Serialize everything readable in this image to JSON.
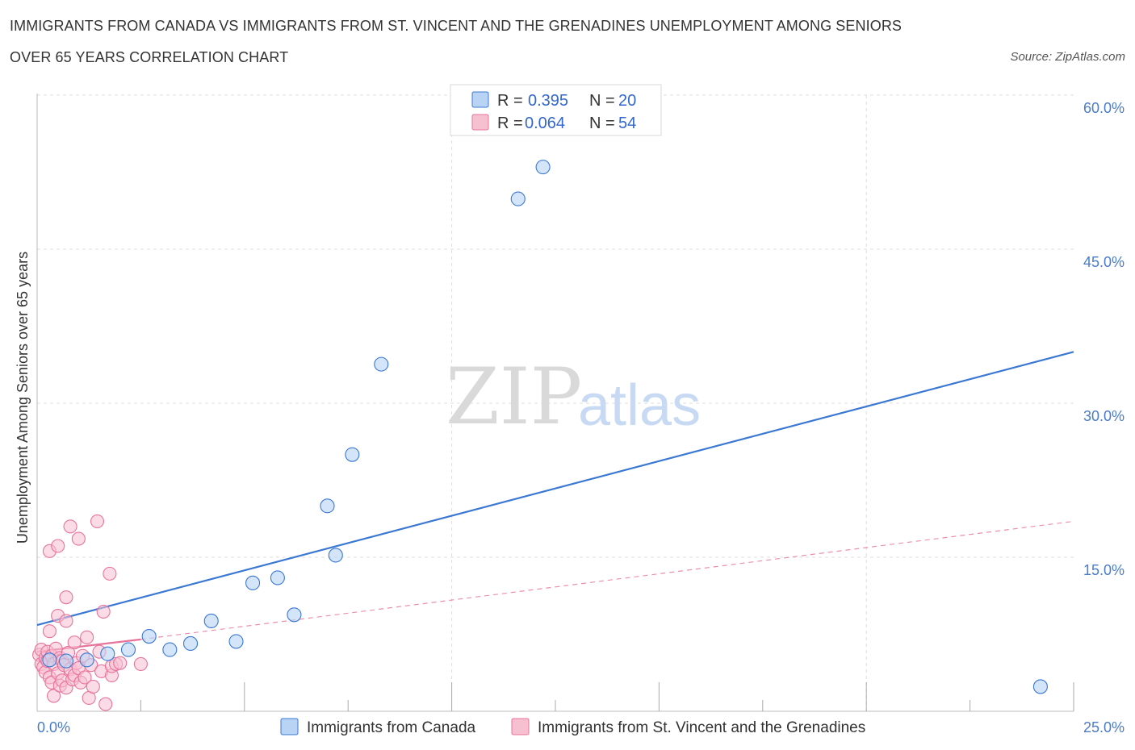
{
  "title_line1": "IMMIGRANTS FROM CANADA VS IMMIGRANTS FROM ST. VINCENT AND THE GRENADINES UNEMPLOYMENT AMONG SENIORS",
  "title_line2": "OVER 65 YEARS CORRELATION CHART",
  "source": "Source: ZipAtlas.com",
  "watermark": {
    "zip": "ZIP",
    "atlas": "atlas"
  },
  "colors": {
    "canada": "#3a78d4",
    "canada_fill": "#b9d3f5",
    "stvincent": "#e8739a",
    "stvincent_fill": "#f7c0d1",
    "tick_text": "#4a7cc9",
    "grid": "#dddddd"
  },
  "legend": {
    "rows": [
      {
        "r_label": "R = ",
        "r_value": "0.395",
        "n_label": "N = ",
        "n_value": "20"
      },
      {
        "r_label": "R = ",
        "r_value": "0.064",
        "n_label": "N = ",
        "n_value": "54"
      }
    ]
  },
  "chart_data": {
    "type": "scatter",
    "title": "IMMIGRANTS FROM CANADA VS IMMIGRANTS FROM ST. VINCENT AND THE GRENADINES UNEMPLOYMENT AMONG SENIORS OVER 65 YEARS CORRELATION CHART",
    "xlabel": "",
    "ylabel": "Unemployment Among Seniors over 65 years",
    "xlim": [
      0,
      25
    ],
    "ylim": [
      0,
      60
    ],
    "x_tick_labels": [
      "0.0%",
      "25.0%"
    ],
    "y_ticks": [
      15,
      30,
      45,
      60
    ],
    "y_tick_labels": [
      "15.0%",
      "30.0%",
      "45.0%",
      "60.0%"
    ],
    "grid": true,
    "series": [
      {
        "name": "Immigrants from Canada",
        "R": 0.395,
        "N": 20,
        "points": [
          [
            0.3,
            5.0
          ],
          [
            0.7,
            4.9
          ],
          [
            1.2,
            5.0
          ],
          [
            1.7,
            5.6
          ],
          [
            2.2,
            6.0
          ],
          [
            2.7,
            7.3
          ],
          [
            3.2,
            6.0
          ],
          [
            3.7,
            6.6
          ],
          [
            4.2,
            8.8
          ],
          [
            4.8,
            6.8
          ],
          [
            5.2,
            12.5
          ],
          [
            5.8,
            13.0
          ],
          [
            6.2,
            9.4
          ],
          [
            7.0,
            20.0
          ],
          [
            7.2,
            15.2
          ],
          [
            7.6,
            25.0
          ],
          [
            8.3,
            33.8
          ],
          [
            11.6,
            49.9
          ],
          [
            12.2,
            53.0
          ],
          [
            24.2,
            2.4
          ]
        ],
        "trend": {
          "x": [
            0,
            25
          ],
          "y": [
            8.4,
            35.0
          ],
          "style": "solid"
        }
      },
      {
        "name": "Immigrants from St. Vincent and the Grenadines",
        "R": 0.064,
        "N": 54,
        "points": [
          [
            0.05,
            5.5
          ],
          [
            0.1,
            4.6
          ],
          [
            0.1,
            6.0
          ],
          [
            0.15,
            4.3
          ],
          [
            0.2,
            5.2
          ],
          [
            0.2,
            3.8
          ],
          [
            0.25,
            5.8
          ],
          [
            0.25,
            4.9
          ],
          [
            0.3,
            15.6
          ],
          [
            0.3,
            7.8
          ],
          [
            0.3,
            3.3
          ],
          [
            0.35,
            2.8
          ],
          [
            0.35,
            5.4
          ],
          [
            0.4,
            4.6
          ],
          [
            0.4,
            1.5
          ],
          [
            0.45,
            6.1
          ],
          [
            0.5,
            16.1
          ],
          [
            0.5,
            9.3
          ],
          [
            0.5,
            3.7
          ],
          [
            0.55,
            5.2
          ],
          [
            0.55,
            2.5
          ],
          [
            0.6,
            4.9
          ],
          [
            0.6,
            3.0
          ],
          [
            0.65,
            4.5
          ],
          [
            0.7,
            11.1
          ],
          [
            0.7,
            8.8
          ],
          [
            0.7,
            2.3
          ],
          [
            0.75,
            5.7
          ],
          [
            0.8,
            18.0
          ],
          [
            0.8,
            4.1
          ],
          [
            0.85,
            3.1
          ],
          [
            0.9,
            6.7
          ],
          [
            0.9,
            3.5
          ],
          [
            0.95,
            4.7
          ],
          [
            1.0,
            16.8
          ],
          [
            1.0,
            4.2
          ],
          [
            1.05,
            2.8
          ],
          [
            1.1,
            5.4
          ],
          [
            1.15,
            3.3
          ],
          [
            1.2,
            7.2
          ],
          [
            1.25,
            1.3
          ],
          [
            1.3,
            4.5
          ],
          [
            1.35,
            2.4
          ],
          [
            1.45,
            18.5
          ],
          [
            1.5,
            5.8
          ],
          [
            1.55,
            3.9
          ],
          [
            1.6,
            9.7
          ],
          [
            1.65,
            0.7
          ],
          [
            1.75,
            13.4
          ],
          [
            1.8,
            3.5
          ],
          [
            1.8,
            4.4
          ],
          [
            1.9,
            4.6
          ],
          [
            2.0,
            4.7
          ],
          [
            2.5,
            4.6
          ]
        ],
        "trend": {
          "x": [
            0,
            2.5
          ],
          "y": [
            5.8,
            7.0
          ],
          "style": "solid",
          "extended": {
            "x": [
              2.5,
              25
            ],
            "y": [
              7.0,
              18.5
            ],
            "style": "dashed"
          }
        }
      }
    ]
  },
  "bottom_legend": {
    "items": [
      {
        "label": "Immigrants from Canada"
      },
      {
        "label": "Immigrants from St. Vincent and the Grenadines"
      }
    ]
  }
}
